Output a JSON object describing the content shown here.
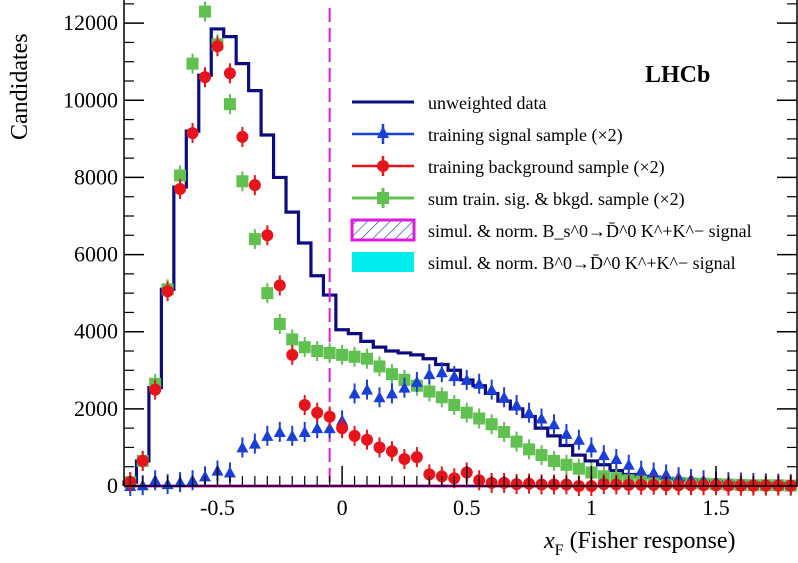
{
  "chart_data": {
    "type": "histogram",
    "brand": "LHCb",
    "xlabel_main": "x",
    "xlabel_sub": "F",
    "xlabel_rest": " (Fisher response)",
    "ylabel": "Candidates",
    "xlim": [
      -0.875,
      1.825
    ],
    "ylim": [
      0,
      12600
    ],
    "xticks": [
      -0.5,
      0,
      0.5,
      1,
      1.5
    ],
    "xtick_labels": [
      "-0.5",
      "0",
      "0.5",
      "1",
      "1.5"
    ],
    "yticks": [
      0,
      2000,
      4000,
      6000,
      8000,
      10000,
      12000
    ],
    "ytick_labels": [
      "0",
      "2000",
      "4000",
      "6000",
      "8000",
      "10000",
      "12000"
    ],
    "bin_edges": [
      -0.875,
      -0.825,
      -0.775,
      -0.725,
      -0.675,
      -0.625,
      -0.575,
      -0.525,
      -0.475,
      -0.425,
      -0.375,
      -0.325,
      -0.275,
      -0.225,
      -0.175,
      -0.125,
      -0.075,
      -0.025,
      0.025,
      0.075,
      0.125,
      0.175,
      0.225,
      0.275,
      0.325,
      0.375,
      0.425,
      0.475,
      0.525,
      0.575,
      0.625,
      0.675,
      0.725,
      0.775,
      0.825,
      0.875,
      0.925,
      0.975,
      1.025,
      1.075,
      1.125,
      1.175,
      1.225,
      1.275,
      1.325,
      1.375,
      1.425,
      1.475,
      1.525,
      1.575,
      1.625,
      1.675,
      1.725,
      1.775,
      1.825
    ],
    "cut_value": -0.05,
    "series": [
      {
        "name": "unweighted data",
        "style": "step",
        "color": "#0c0c80",
        "values": [
          100,
          650,
          2550,
          5100,
          7750,
          9200,
          10650,
          11850,
          11650,
          10950,
          10250,
          9100,
          8000,
          7100,
          6300,
          5450,
          4950,
          4050,
          3950,
          3750,
          3600,
          3500,
          3450,
          3400,
          3300,
          3150,
          3000,
          2750,
          2600,
          2400,
          2200,
          2000,
          1800,
          1500,
          1300,
          1050,
          800,
          650,
          550,
          400,
          300,
          250,
          230,
          200,
          180,
          150,
          130,
          120,
          100,
          100,
          90,
          80,
          70,
          60
        ]
      },
      {
        "name": "training signal sample  (×2)",
        "style": "markers",
        "marker": "triangle",
        "color": "#1a3ed8",
        "x": [
          -0.85,
          -0.8,
          -0.75,
          -0.7,
          -0.65,
          -0.6,
          -0.55,
          -0.5,
          -0.45,
          -0.4,
          -0.35,
          -0.3,
          -0.25,
          -0.2,
          -0.15,
          -0.1,
          -0.05,
          0,
          0.05,
          0.1,
          0.15,
          0.2,
          0.25,
          0.3,
          0.35,
          0.4,
          0.45,
          0.5,
          0.55,
          0.6,
          0.65,
          0.7,
          0.75,
          0.8,
          0.85,
          0.9,
          0.95,
          1,
          1.05,
          1.1,
          1.15,
          1.2,
          1.25,
          1.3,
          1.35,
          1.4,
          1.45,
          1.5,
          1.55,
          1.6,
          1.65,
          1.7,
          1.75,
          1.8
        ],
        "y": [
          0,
          20,
          150,
          50,
          100,
          150,
          250,
          400,
          350,
          1000,
          1100,
          1300,
          1400,
          1300,
          1400,
          1500,
          1500,
          1700,
          2400,
          2500,
          2300,
          2400,
          2550,
          2700,
          2900,
          2950,
          2850,
          2750,
          2650,
          2500,
          2300,
          2100,
          1900,
          1750,
          1600,
          1350,
          1200,
          1000,
          800,
          700,
          550,
          400,
          350,
          300,
          230,
          180,
          150,
          120,
          100,
          90,
          80,
          70,
          60,
          50
        ]
      },
      {
        "name": "training background sample (×2)",
        "style": "markers",
        "marker": "circle",
        "color": "#e8141c",
        "x": [
          -0.85,
          -0.8,
          -0.75,
          -0.7,
          -0.65,
          -0.6,
          -0.55,
          -0.5,
          -0.45,
          -0.4,
          -0.35,
          -0.3,
          -0.25,
          -0.2,
          -0.15,
          -0.1,
          -0.05,
          0,
          0.05,
          0.1,
          0.15,
          0.2,
          0.25,
          0.3,
          0.35,
          0.4,
          0.45,
          0.5,
          0.55,
          0.6,
          0.65,
          0.7,
          0.75,
          0.8,
          0.85,
          0.9,
          0.95,
          1,
          1.05,
          1.1,
          1.15,
          1.2,
          1.25,
          1.3,
          1.35,
          1.4,
          1.45,
          1.5,
          1.55,
          1.6,
          1.65,
          1.7,
          1.75,
          1.8
        ],
        "y": [
          100,
          650,
          2500,
          5050,
          7700,
          9150,
          10600,
          11400,
          10700,
          9050,
          7800,
          6500,
          5200,
          3400,
          2100,
          1900,
          1800,
          1500,
          1300,
          1200,
          1000,
          900,
          700,
          750,
          300,
          250,
          200,
          350,
          150,
          80,
          80,
          50,
          60,
          40,
          40,
          40,
          0,
          0,
          50,
          40,
          30,
          30,
          30,
          20,
          20,
          20,
          20,
          20,
          10,
          10,
          10,
          10,
          10,
          10
        ]
      },
      {
        "name": "sum train. sig. & bkgd. sample (×2)",
        "style": "markers",
        "marker": "square",
        "color": "#60c050",
        "x": [
          -0.85,
          -0.8,
          -0.75,
          -0.7,
          -0.65,
          -0.6,
          -0.55,
          -0.5,
          -0.45,
          -0.4,
          -0.35,
          -0.3,
          -0.25,
          -0.2,
          -0.15,
          -0.1,
          -0.05,
          0,
          0.05,
          0.1,
          0.15,
          0.2,
          0.25,
          0.3,
          0.35,
          0.4,
          0.45,
          0.5,
          0.55,
          0.6,
          0.65,
          0.7,
          0.75,
          0.8,
          0.85,
          0.9,
          0.95,
          1,
          1.05,
          1.1,
          1.15,
          1.2,
          1.25,
          1.3,
          1.35,
          1.4,
          1.45,
          1.5,
          1.55,
          1.6,
          1.65,
          1.7,
          1.75,
          1.8
        ],
        "y": [
          100,
          650,
          2650,
          5100,
          8050,
          10950,
          12300,
          11450,
          9900,
          7900,
          6400,
          5000,
          4200,
          3800,
          3600,
          3500,
          3450,
          3400,
          3350,
          3300,
          3100,
          2900,
          2750,
          2600,
          2450,
          2300,
          2100,
          1900,
          1750,
          1600,
          1400,
          1150,
          950,
          800,
          650,
          550,
          450,
          350,
          250,
          200,
          150,
          120,
          100,
          90,
          80,
          70,
          60,
          50,
          40,
          30,
          20,
          20,
          20,
          10
        ]
      },
      {
        "name": "simul. & norm. B_s^0→D̄^0 K^+K^− signal",
        "style": "hist-hatched",
        "color": "#e018e0",
        "hatch_color": "#1a3ed8",
        "values": [
          0,
          0,
          0,
          0,
          0,
          0,
          0,
          0,
          0,
          0,
          0,
          0,
          0,
          0,
          0,
          0,
          0,
          0,
          0,
          0,
          0,
          0,
          0,
          0,
          0,
          0,
          0,
          0,
          0,
          0,
          0,
          0,
          0,
          0,
          0,
          0,
          0,
          0,
          0,
          0,
          0,
          0,
          0,
          0,
          0,
          0,
          0,
          0,
          0,
          0,
          0,
          0,
          0,
          0
        ]
      },
      {
        "name": "simul. & norm. B^0→D̄^0 K^+K^− signal",
        "style": "hist-filled",
        "color": "#00ecec",
        "values": [
          0,
          0,
          0,
          0,
          0,
          0,
          0,
          0,
          0,
          0,
          0,
          0,
          0,
          0,
          0,
          0,
          0,
          0,
          0,
          0,
          0,
          0,
          0,
          0,
          0,
          0,
          0,
          0,
          0,
          0,
          0,
          0,
          0,
          0,
          0,
          0,
          0,
          0,
          0,
          0,
          0,
          0,
          0,
          0,
          0,
          0,
          0,
          0,
          0,
          0,
          0,
          0,
          0,
          0
        ]
      }
    ]
  }
}
